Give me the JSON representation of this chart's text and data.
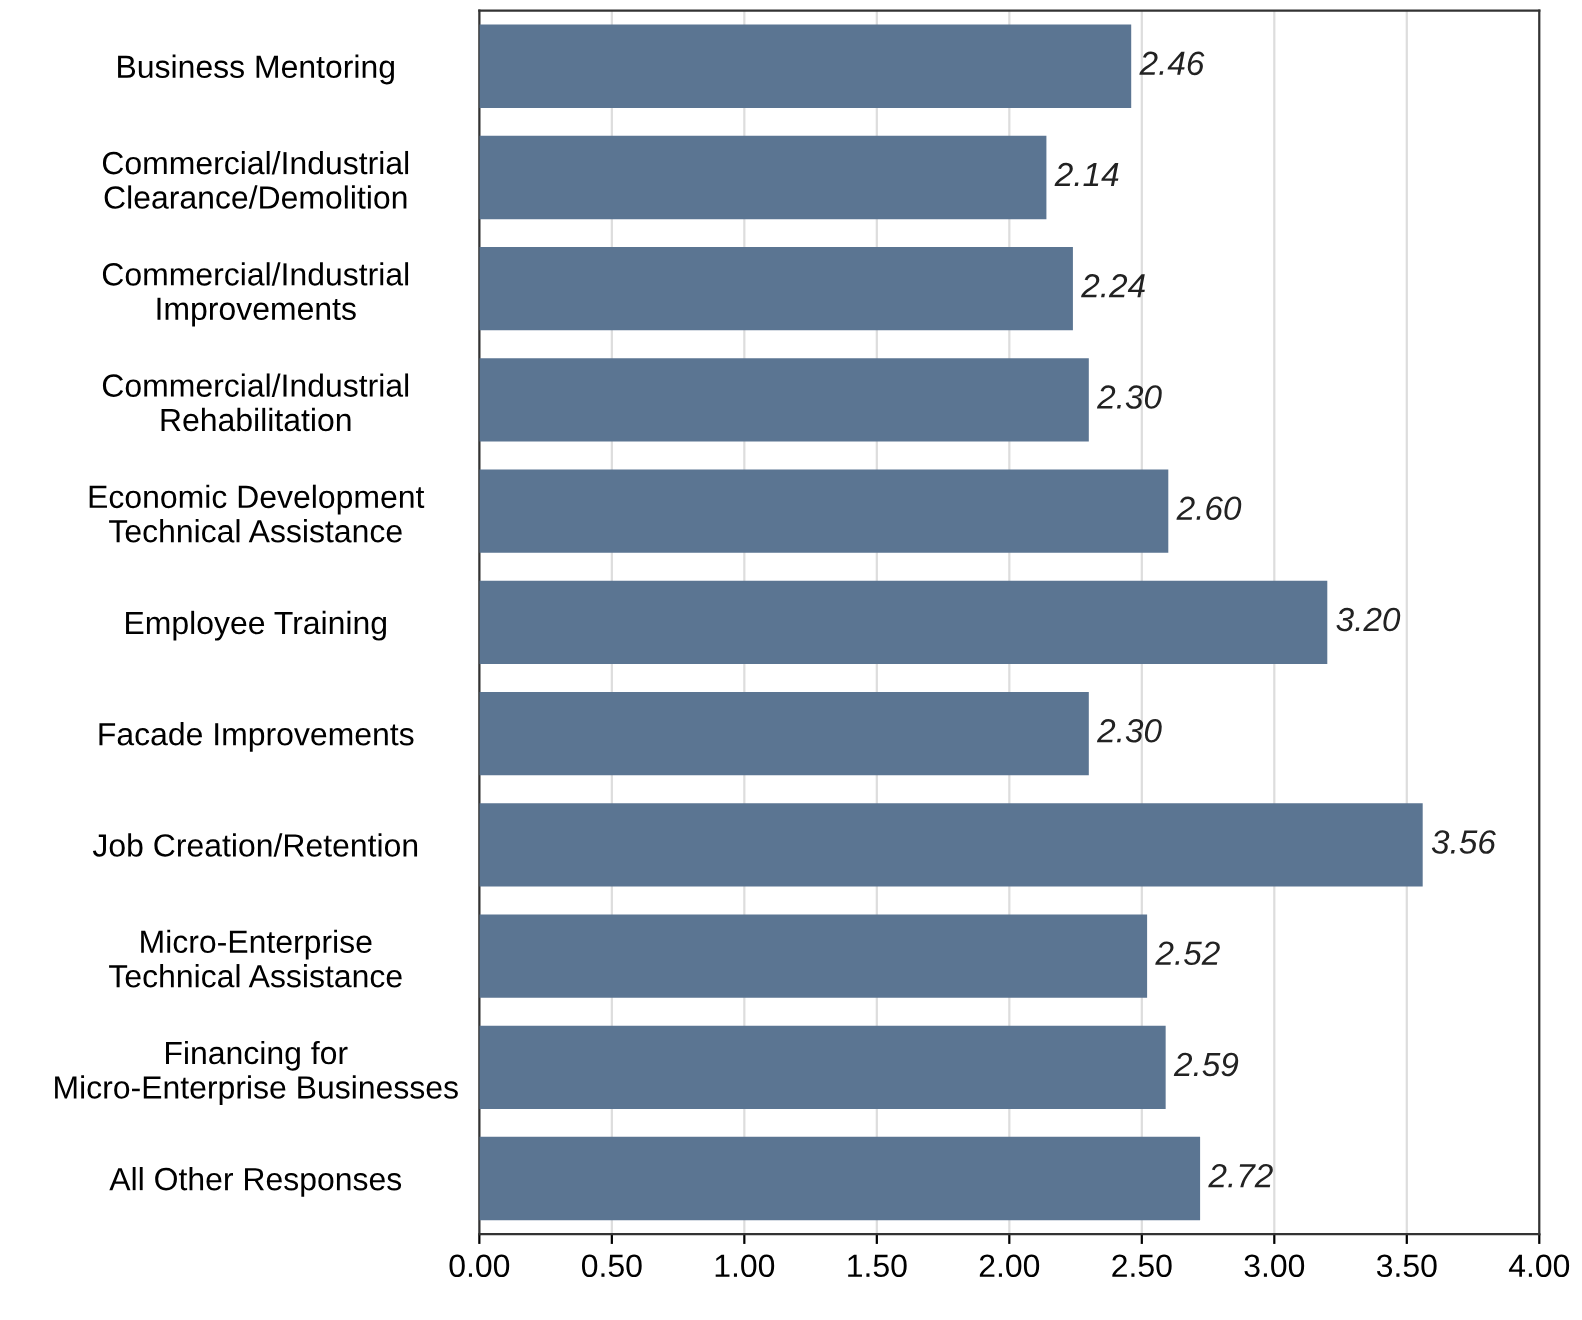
{
  "chart_data": {
    "type": "bar",
    "orientation": "horizontal",
    "categories": [
      "Business Mentoring",
      "Commercial/Industrial\nClearance/Demolition",
      "Commercial/Industrial\nImprovements",
      "Commercial/Industrial\nRehabilitation",
      "Economic Development\nTechnical Assistance",
      "Employee Training",
      "Facade Improvements",
      "Job Creation/Retention",
      "Micro-Enterprise\nTechnical Assistance",
      "Financing for\nMicro-Enterprise Businesses",
      "All Other Responses"
    ],
    "values": [
      2.46,
      2.14,
      2.24,
      2.3,
      2.6,
      3.2,
      2.3,
      3.56,
      2.52,
      2.59,
      2.72
    ],
    "value_labels": [
      "2.46",
      "2.14",
      "2.24",
      "2.30",
      "2.60",
      "3.20",
      "2.30",
      "3.56",
      "2.52",
      "2.59",
      "2.72"
    ],
    "color": "#5b7592",
    "xlim": [
      0,
      4
    ],
    "xticks": [
      {
        "value": 0,
        "label": "0.00"
      },
      {
        "value": 0.5,
        "label": "0.50"
      },
      {
        "value": 1,
        "label": "1.00"
      },
      {
        "value": 1.5,
        "label": "1.50"
      },
      {
        "value": 2,
        "label": "2.00"
      },
      {
        "value": 2.5,
        "label": "2.50"
      },
      {
        "value": 3,
        "label": "3.00"
      },
      {
        "value": 3.5,
        "label": "3.50"
      },
      {
        "value": 4,
        "label": "4.00"
      }
    ],
    "grid": "x"
  }
}
